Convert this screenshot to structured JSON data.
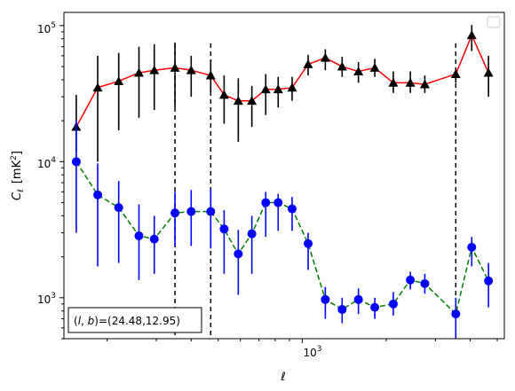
{
  "chart_data": {
    "type": "scatter",
    "xscale": "log",
    "yscale": "log",
    "xlim": [
      140,
      5300
    ],
    "ylim": [
      500,
      125000
    ],
    "xlabel": "ℓ",
    "ylabel": "C_ℓ [mK²]",
    "ylabel_main": "C",
    "ylabel_sub": "ℓ",
    "ylabel_unit": "[mK",
    "ylabel_sup": "2",
    "ylabel_close": "]",
    "xticks": [
      {
        "value": 1000,
        "base": "10",
        "exp": "3"
      }
    ],
    "yticks": [
      {
        "value": 1000,
        "base": "10",
        "exp": "3"
      },
      {
        "value": 10000,
        "base": "10",
        "exp": "4"
      },
      {
        "value": 100000,
        "base": "10",
        "exp": "5"
      }
    ],
    "annotation": "(l, b)=(24.48,12.95)",
    "annotation_parts": {
      "open": "(",
      "l": "l",
      "comma": ", ",
      "b": "b",
      "rest": ")=(24.48,12.95)"
    },
    "grid": false,
    "legend": "top-right (empty)",
    "vlines": [
      350,
      470,
      3550
    ],
    "x": [
      155,
      185,
      220,
      260,
      295,
      350,
      400,
      470,
      525,
      590,
      660,
      740,
      820,
      920,
      1050,
      1210,
      1390,
      1590,
      1820,
      2120,
      2440,
      2750,
      3100,
      3550,
      4050,
      4650
    ],
    "series": [
      {
        "color": "#ff0000",
        "marker": "triangle",
        "marker_color": "#000000",
        "line_style": "solid",
        "y": [
          18000,
          35000,
          39000,
          45000,
          47000,
          49000,
          47000,
          43000,
          31000,
          28000,
          28000,
          34000,
          34000,
          35000,
          52000,
          58000,
          50000,
          46000,
          49000,
          38000,
          38000,
          37000,
          44000,
          85000,
          45000
        ],
        "err_lo": [
          6000,
          25000,
          22000,
          24000,
          23000,
          24000,
          17000,
          11000,
          12000,
          14000,
          10000,
          12000,
          9000,
          7000,
          9000,
          11000,
          8000,
          8000,
          7000,
          6000,
          6000,
          5000,
          6000,
          20000,
          15000
        ],
        "err_hi": [
          13000,
          25000,
          24000,
          25000,
          26000,
          26000,
          13000,
          13000,
          12000,
          13000,
          8000,
          10000,
          8000,
          7000,
          9000,
          9000,
          9000,
          8000,
          8000,
          8000,
          8000,
          6000,
          5000,
          16000,
          15000
        ],
        "x_index": [
          0,
          1,
          2,
          3,
          4,
          5,
          6,
          7,
          8,
          9,
          10,
          11,
          12,
          13,
          14,
          15,
          16,
          17,
          18,
          19,
          20,
          21,
          23,
          24,
          25
        ]
      },
      {
        "color": "#008000",
        "marker": "circle",
        "marker_color": "#0000ff",
        "line_style": "dashed",
        "y": [
          10000,
          5700,
          4600,
          2850,
          2700,
          4200,
          4300,
          4300,
          3200,
          2100,
          2950,
          5000,
          5000,
          4500,
          2500,
          970,
          820,
          970,
          850,
          900,
          1350,
          1270,
          760,
          2350,
          1330
        ],
        "err_lo": [
          7000,
          4000,
          2800,
          1500,
          1200,
          1800,
          1900,
          2000,
          1700,
          1050,
          1450,
          2200,
          1900,
          1400,
          900,
          270,
          170,
          210,
          150,
          160,
          200,
          200,
          260,
          650,
          480
        ],
        "err_hi": [
          10000,
          4000,
          2600,
          2000,
          1300,
          1800,
          1900,
          2000,
          1200,
          1050,
          1050,
          1000,
          800,
          1000,
          500,
          230,
          180,
          200,
          150,
          200,
          200,
          230,
          240,
          450,
          470
        ],
        "x_index": [
          0,
          1,
          2,
          3,
          4,
          5,
          6,
          7,
          8,
          9,
          10,
          11,
          12,
          13,
          14,
          15,
          16,
          17,
          18,
          19,
          20,
          21,
          23,
          24,
          25
        ]
      }
    ]
  }
}
